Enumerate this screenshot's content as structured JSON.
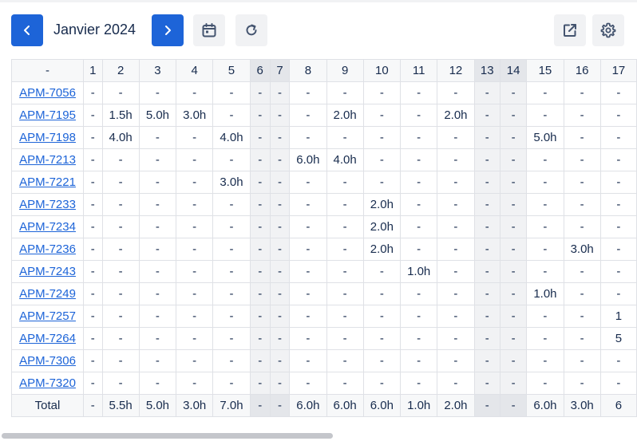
{
  "toolbar": {
    "month": "Janvier 2024",
    "icons": {
      "prev": "chevron-left-icon",
      "next": "chevron-right-icon",
      "calendar": "calendar-icon",
      "refresh": "refresh-icon",
      "open": "external-link-icon",
      "settings": "gear-icon"
    }
  },
  "colors": {
    "primary": "#1d64d8",
    "link": "#1d64d8",
    "weekend": "#f1f2f4",
    "weekend_header": "#e4e6ea",
    "border": "#dfe1e6"
  },
  "grid": {
    "corner_label": "-",
    "days": [
      "1",
      "2",
      "3",
      "4",
      "5",
      "6",
      "7",
      "8",
      "9",
      "10",
      "11",
      "12",
      "13",
      "14",
      "15",
      "16",
      "17"
    ],
    "weekend_days": [
      "6",
      "7",
      "13",
      "14"
    ],
    "rows": [
      {
        "key": "APM-7056",
        "cells": [
          "-",
          "-",
          "-",
          "-",
          "-",
          "-",
          "-",
          "-",
          "-",
          "-",
          "-",
          "-",
          "-",
          "-",
          "-",
          "-",
          "-"
        ]
      },
      {
        "key": "APM-7195",
        "cells": [
          "-",
          "1.5h",
          "5.0h",
          "3.0h",
          "-",
          "-",
          "-",
          "-",
          "2.0h",
          "-",
          "-",
          "2.0h",
          "-",
          "-",
          "-",
          "-",
          "-"
        ]
      },
      {
        "key": "APM-7198",
        "cells": [
          "-",
          "4.0h",
          "-",
          "-",
          "4.0h",
          "-",
          "-",
          "-",
          "-",
          "-",
          "-",
          "-",
          "-",
          "-",
          "5.0h",
          "-",
          "-"
        ]
      },
      {
        "key": "APM-7213",
        "cells": [
          "-",
          "-",
          "-",
          "-",
          "-",
          "-",
          "-",
          "6.0h",
          "4.0h",
          "-",
          "-",
          "-",
          "-",
          "-",
          "-",
          "-",
          "-"
        ]
      },
      {
        "key": "APM-7221",
        "cells": [
          "-",
          "-",
          "-",
          "-",
          "3.0h",
          "-",
          "-",
          "-",
          "-",
          "-",
          "-",
          "-",
          "-",
          "-",
          "-",
          "-",
          "-"
        ]
      },
      {
        "key": "APM-7233",
        "cells": [
          "-",
          "-",
          "-",
          "-",
          "-",
          "-",
          "-",
          "-",
          "-",
          "2.0h",
          "-",
          "-",
          "-",
          "-",
          "-",
          "-",
          "-"
        ]
      },
      {
        "key": "APM-7234",
        "cells": [
          "-",
          "-",
          "-",
          "-",
          "-",
          "-",
          "-",
          "-",
          "-",
          "2.0h",
          "-",
          "-",
          "-",
          "-",
          "-",
          "-",
          "-"
        ]
      },
      {
        "key": "APM-7236",
        "cells": [
          "-",
          "-",
          "-",
          "-",
          "-",
          "-",
          "-",
          "-",
          "-",
          "2.0h",
          "-",
          "-",
          "-",
          "-",
          "-",
          "3.0h",
          "-"
        ]
      },
      {
        "key": "APM-7243",
        "cells": [
          "-",
          "-",
          "-",
          "-",
          "-",
          "-",
          "-",
          "-",
          "-",
          "-",
          "1.0h",
          "-",
          "-",
          "-",
          "-",
          "-",
          "-"
        ]
      },
      {
        "key": "APM-7249",
        "cells": [
          "-",
          "-",
          "-",
          "-",
          "-",
          "-",
          "-",
          "-",
          "-",
          "-",
          "-",
          "-",
          "-",
          "-",
          "1.0h",
          "-",
          "-"
        ]
      },
      {
        "key": "APM-7257",
        "cells": [
          "-",
          "-",
          "-",
          "-",
          "-",
          "-",
          "-",
          "-",
          "-",
          "-",
          "-",
          "-",
          "-",
          "-",
          "-",
          "-",
          "1"
        ]
      },
      {
        "key": "APM-7264",
        "cells": [
          "-",
          "-",
          "-",
          "-",
          "-",
          "-",
          "-",
          "-",
          "-",
          "-",
          "-",
          "-",
          "-",
          "-",
          "-",
          "-",
          "5"
        ]
      },
      {
        "key": "APM-7306",
        "cells": [
          "-",
          "-",
          "-",
          "-",
          "-",
          "-",
          "-",
          "-",
          "-",
          "-",
          "-",
          "-",
          "-",
          "-",
          "-",
          "-",
          "-"
        ]
      },
      {
        "key": "APM-7320",
        "cells": [
          "-",
          "-",
          "-",
          "-",
          "-",
          "-",
          "-",
          "-",
          "-",
          "-",
          "-",
          "-",
          "-",
          "-",
          "-",
          "-",
          "-"
        ]
      }
    ],
    "total": {
      "label": "Total",
      "cells": [
        "-",
        "5.5h",
        "5.0h",
        "3.0h",
        "7.0h",
        "-",
        "-",
        "6.0h",
        "6.0h",
        "6.0h",
        "1.0h",
        "2.0h",
        "-",
        "-",
        "6.0h",
        "3.0h",
        "6"
      ]
    }
  }
}
